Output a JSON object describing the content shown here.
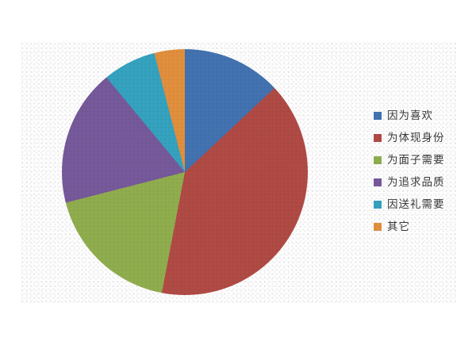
{
  "page": {
    "background_color": "#ffffff",
    "panel_texture": "light-halftone-dots"
  },
  "chart_data": {
    "type": "pie",
    "title": "",
    "labels": [
      "因为喜欢",
      "为体现身份",
      "为面子需要",
      "为追求品质",
      "因送礼需要",
      "其它"
    ],
    "values": [
      13,
      40,
      18,
      18,
      7,
      4
    ],
    "unit": "percent",
    "colors": [
      "#4272b0",
      "#b04a45",
      "#90ad4e",
      "#76599a",
      "#35a2bf",
      "#e18f3d"
    ],
    "start_angle_deg": 0,
    "direction": "clockwise",
    "legend_position": "right",
    "legend_text_color": "#3a3a3a",
    "data_labels_shown": false
  }
}
